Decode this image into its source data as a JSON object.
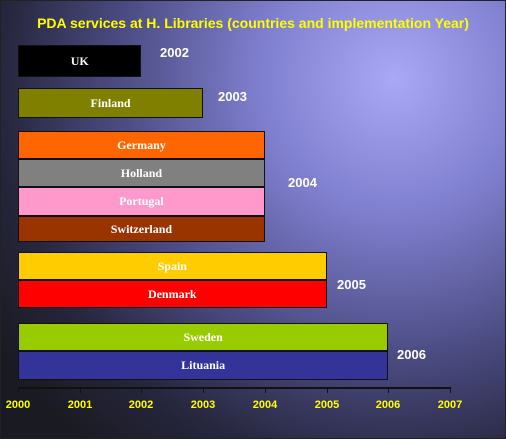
{
  "chart_data": {
    "type": "bar",
    "orientation": "horizontal",
    "title": "PDA services at H. Libraries  (countries and implementation Year)",
    "xlim": [
      2000,
      2007
    ],
    "x_ticks": [
      "2000",
      "2001",
      "2002",
      "2003",
      "2004",
      "2005",
      "2006",
      "2007"
    ],
    "bars": [
      {
        "label": "UK",
        "value": 2002,
        "color": "#000000",
        "text_color": "#ffffff"
      },
      {
        "label": "Finland",
        "value": 2003,
        "color": "#808000",
        "text_color": "#ffffff"
      },
      {
        "label": "Germany",
        "value": 2004,
        "color": "#ff6600",
        "text_color": "#ffffff"
      },
      {
        "label": "Holland",
        "value": 2004,
        "color": "#808080",
        "text_color": "#ffffff"
      },
      {
        "label": "Portugal",
        "value": 2004,
        "color": "#ff99cc",
        "text_color": "#ffffff"
      },
      {
        "label": "Switzerland",
        "value": 2004,
        "color": "#993300",
        "text_color": "#ffffff"
      },
      {
        "label": "Spain",
        "value": 2005,
        "color": "#ffcc00",
        "text_color": "#ffffff"
      },
      {
        "label": "Denmark",
        "value": 2005,
        "color": "#ff0000",
        "text_color": "#ffffff"
      },
      {
        "label": "Sweden",
        "value": 2006,
        "color": "#99cc00",
        "text_color": "#ffffff"
      },
      {
        "label": "Lituania",
        "value": 2006,
        "color": "#333399",
        "text_color": "#ffffff"
      }
    ],
    "year_labels": [
      "2002",
      "2003",
      "2004",
      "2005",
      "2006"
    ],
    "grid": false,
    "legend": "none"
  }
}
